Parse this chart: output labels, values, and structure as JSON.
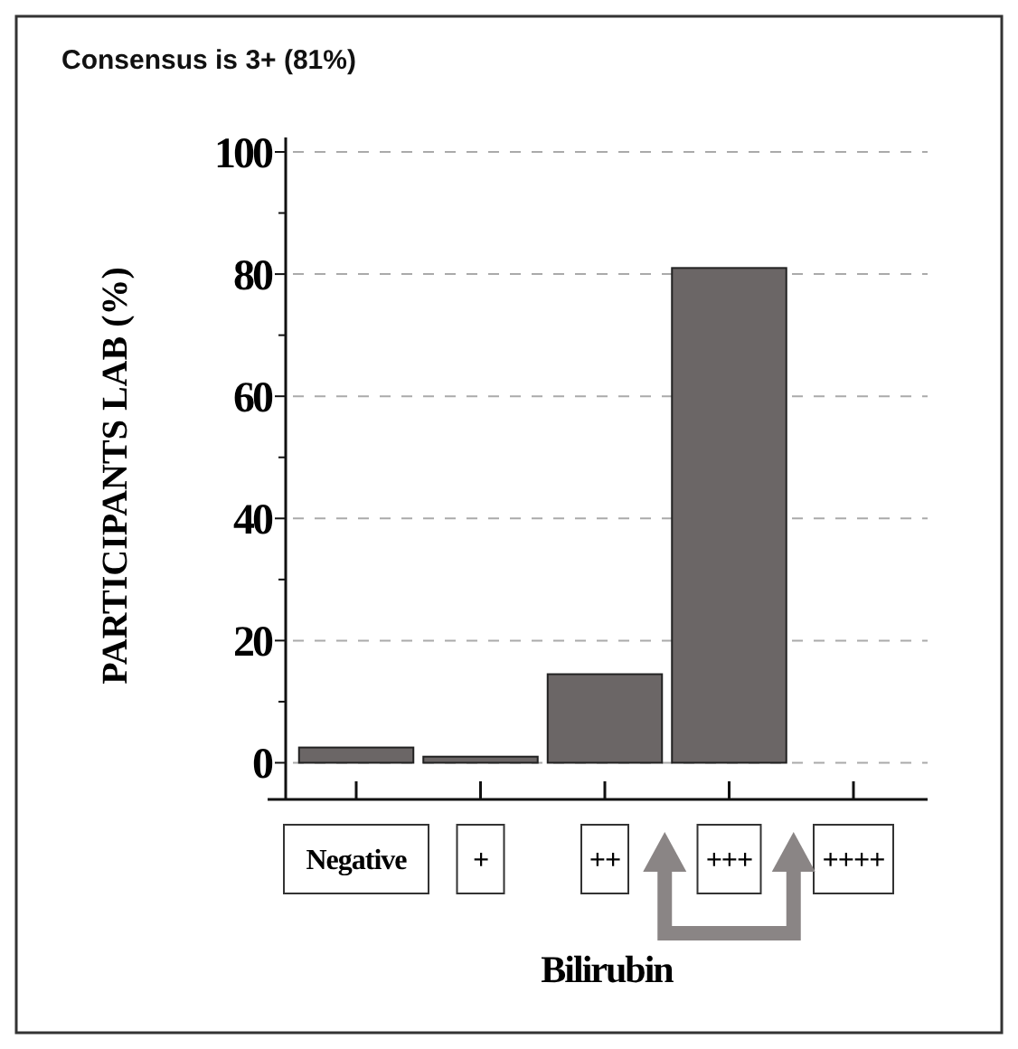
{
  "chart_data": {
    "type": "bar",
    "title": "Consensus is 3+ (81%)",
    "xlabel": "Bilirubin",
    "ylabel": "PARTICIPANTS LAB (%)",
    "categories": [
      "Negative",
      "+",
      "++",
      "+++",
      "++++"
    ],
    "values": [
      2.5,
      1,
      14.5,
      81,
      0
    ],
    "color": "#6b6666",
    "ylim": [
      -6,
      100
    ],
    "yticks": [
      0,
      20,
      40,
      60,
      80,
      100
    ],
    "grid": "y"
  }
}
